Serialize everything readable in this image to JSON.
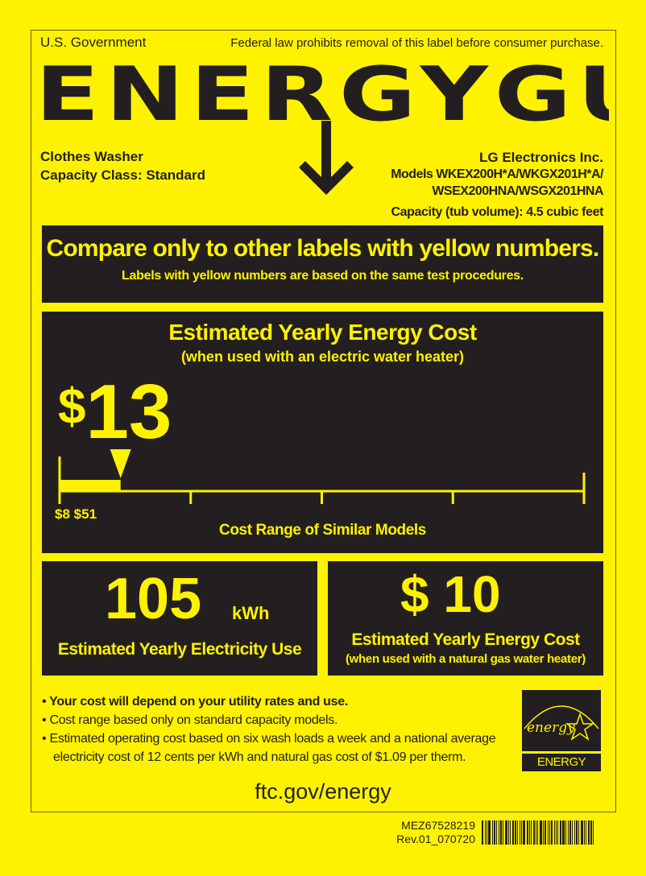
{
  "header": {
    "left": "U.S. Government",
    "right": "Federal law prohibits removal of this label before consumer purchase.",
    "logo": "ENERGYGUIDE"
  },
  "product": {
    "type": "Clothes Washer",
    "capacity_class": "Capacity Class: Standard",
    "manufacturer": "LG Electronics Inc.",
    "models_line1": "Models WKEX200H*A/WKGX201H*A/",
    "models_line2": "WSEX200HNA/WSGX201HNA",
    "capacity_label": "Capacity (tub volume):",
    "capacity_value": "4.5 cubic feet"
  },
  "compare": {
    "title": "Compare only to other labels with yellow numbers.",
    "subtitle": "Labels with yellow numbers are based on the same test procedures."
  },
  "cost": {
    "title": "Estimated Yearly Energy Cost",
    "subtitle": "(when used with an electric water heater)",
    "currency": "$",
    "value": "13",
    "range_min": "$8",
    "range_max": "$51",
    "range_label": "Cost Range of Similar Models",
    "min": 8,
    "max": 51,
    "current": 13
  },
  "electricity": {
    "value": "105",
    "unit": "kWh",
    "label": "Estimated Yearly Electricity Use"
  },
  "gas": {
    "value": "$ 10",
    "label": "Estimated Yearly Energy Cost",
    "sublabel": "(when used with a natural gas water heater)"
  },
  "notes": [
    "Your cost will depend on your utility rates and use.",
    "Cost range based only on standard capacity models.",
    "Estimated operating cost based on six wash loads a week and a national average",
    "electricity cost of 12 cents per kWh and natural gas cost of $1.09 per therm."
  ],
  "energy_star": {
    "script": "energy",
    "label": "ENERGY STAR"
  },
  "footer": {
    "url": "ftc.gov/energy",
    "part": "MEZ67528219",
    "rev": "Rev.01_070720"
  },
  "colors": {
    "yellow": "#fff200",
    "dark": "#231f20"
  }
}
